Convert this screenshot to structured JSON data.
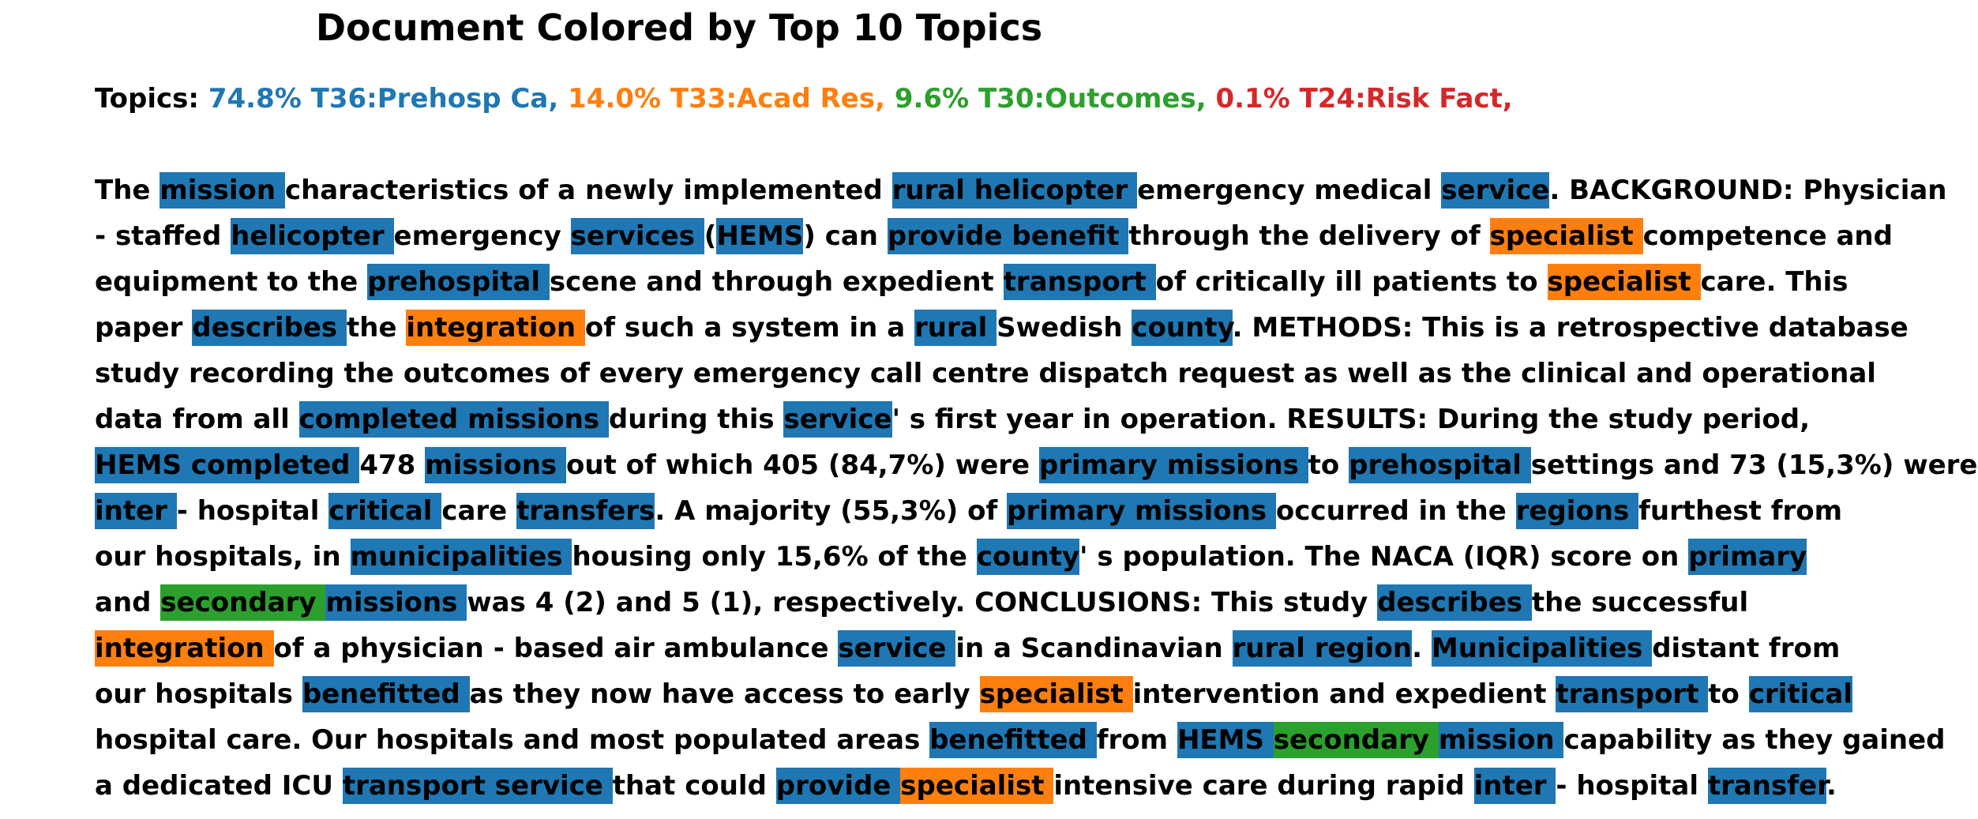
{
  "title": "Document Colored by Top 10 Topics",
  "topics_prefix": "Topics:",
  "topics": [
    {
      "label": "74.8% T36:Prehosp Ca,",
      "color": "#1f77b4"
    },
    {
      "label": "14.0% T33:Acad Res,",
      "color": "#ff7f0e"
    },
    {
      "label": "9.6% T30:Outcomes,",
      "color": "#2ca02c"
    },
    {
      "label": "0.1% T24:Risk Fact,",
      "color": "#d62728"
    }
  ],
  "lines": [
    [
      [
        "The ",
        ""
      ],
      [
        "mission ",
        "t36"
      ],
      [
        "characteristics of a newly implemented ",
        ""
      ],
      [
        "rural helicopter ",
        "t36"
      ],
      [
        "emergency medical ",
        ""
      ],
      [
        "service",
        "t36"
      ],
      [
        ". BACKGROUND: Physician",
        ""
      ]
    ],
    [
      [
        "- staffed ",
        ""
      ],
      [
        "helicopter ",
        "t36"
      ],
      [
        "emergency ",
        ""
      ],
      [
        "services ",
        "t36"
      ],
      [
        "(",
        ""
      ],
      [
        "HEMS",
        "t36"
      ],
      [
        ") can ",
        ""
      ],
      [
        "provide benefit ",
        "t36"
      ],
      [
        "through the delivery of ",
        ""
      ],
      [
        "specialist ",
        "t33"
      ],
      [
        "competence and",
        ""
      ]
    ],
    [
      [
        "equipment to the ",
        ""
      ],
      [
        "prehospital ",
        "t36"
      ],
      [
        "scene and through expedient ",
        ""
      ],
      [
        "transport ",
        "t36"
      ],
      [
        "of critically ill patients to ",
        ""
      ],
      [
        "specialist ",
        "t33"
      ],
      [
        "care. This",
        ""
      ]
    ],
    [
      [
        "paper ",
        ""
      ],
      [
        "describes ",
        "t36"
      ],
      [
        "the ",
        ""
      ],
      [
        "integration ",
        "t33"
      ],
      [
        "of such a system in a ",
        ""
      ],
      [
        "rural ",
        "t36"
      ],
      [
        "Swedish ",
        ""
      ],
      [
        "county",
        "t36"
      ],
      [
        ". METHODS: This is a retrospective database",
        ""
      ]
    ],
    [
      [
        "study recording the outcomes of every emergency call centre dispatch request as well as the clinical and operational",
        ""
      ]
    ],
    [
      [
        "data from all ",
        ""
      ],
      [
        "completed missions ",
        "t36"
      ],
      [
        "during this ",
        ""
      ],
      [
        "service",
        "t36"
      ],
      [
        "' s first year in operation. RESULTS: During the study period,",
        ""
      ]
    ],
    [
      [
        "HEMS completed ",
        "t36"
      ],
      [
        "478 ",
        ""
      ],
      [
        "missions ",
        "t36"
      ],
      [
        "out of which 405 (84,7%) were ",
        ""
      ],
      [
        "primary missions ",
        "t36"
      ],
      [
        "to ",
        ""
      ],
      [
        "prehospital ",
        "t36"
      ],
      [
        "settings and 73 (15,3%) were",
        ""
      ]
    ],
    [
      [
        "inter ",
        "t36"
      ],
      [
        "- hospital ",
        ""
      ],
      [
        "critical ",
        "t36"
      ],
      [
        "care ",
        ""
      ],
      [
        "transfers",
        "t36"
      ],
      [
        ". A majority (55,3%) of ",
        ""
      ],
      [
        "primary missions ",
        "t36"
      ],
      [
        "occurred in the ",
        ""
      ],
      [
        "regions ",
        "t36"
      ],
      [
        "furthest from",
        ""
      ]
    ],
    [
      [
        "our hospitals, in ",
        ""
      ],
      [
        "municipalities ",
        "t36"
      ],
      [
        "housing only 15,6% of the ",
        ""
      ],
      [
        "county",
        "t36"
      ],
      [
        "' s population. The NACA (IQR) score on ",
        ""
      ],
      [
        "primary ",
        "t36"
      ]
    ],
    [
      [
        "and ",
        ""
      ],
      [
        "secondary ",
        "t30"
      ],
      [
        "missions ",
        "t36"
      ],
      [
        "was 4 (2) and 5 (1), respectively. CONCLUSIONS: This study ",
        ""
      ],
      [
        "describes ",
        "t36"
      ],
      [
        "the successful",
        ""
      ]
    ],
    [
      [
        "integration ",
        "t33"
      ],
      [
        "of a physician - based air ambulance ",
        ""
      ],
      [
        "service ",
        "t36"
      ],
      [
        "in a Scandinavian ",
        ""
      ],
      [
        "rural region",
        "t36"
      ],
      [
        ". ",
        ""
      ],
      [
        "Municipalities ",
        "t36"
      ],
      [
        "distant from",
        ""
      ]
    ],
    [
      [
        "our hospitals ",
        ""
      ],
      [
        "benefitted ",
        "t36"
      ],
      [
        "as they now have access to early ",
        ""
      ],
      [
        "specialist ",
        "t33"
      ],
      [
        "intervention and expedient ",
        ""
      ],
      [
        "transport ",
        "t36"
      ],
      [
        "to ",
        ""
      ],
      [
        "critical ",
        "t36"
      ]
    ],
    [
      [
        "hospital care. Our hospitals and most populated areas ",
        ""
      ],
      [
        "benefitted ",
        "t36"
      ],
      [
        "from ",
        ""
      ],
      [
        "HEMS ",
        "t36"
      ],
      [
        "secondary ",
        "t30"
      ],
      [
        "mission ",
        "t36"
      ],
      [
        "capability as they gained",
        ""
      ]
    ],
    [
      [
        "a dedicated ICU ",
        ""
      ],
      [
        "transport service ",
        "t36"
      ],
      [
        "that could ",
        ""
      ],
      [
        "provide ",
        "t36"
      ],
      [
        "specialist ",
        "t33"
      ],
      [
        "intensive care during rapid ",
        ""
      ],
      [
        "inter ",
        "t36"
      ],
      [
        "- hospital ",
        ""
      ],
      [
        "transfer",
        "t36"
      ],
      [
        ".",
        ""
      ]
    ]
  ]
}
